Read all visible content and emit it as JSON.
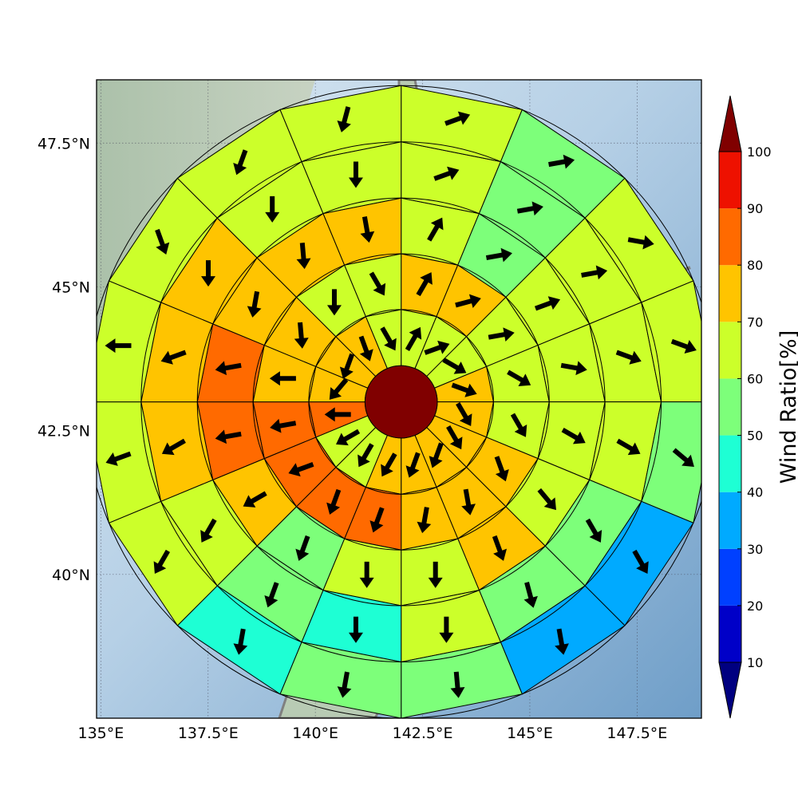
{
  "map": {
    "lon_ticks": [
      "135°E",
      "137.5°E",
      "140°E",
      "142.5°E",
      "145°E",
      "147.5°E"
    ],
    "lat_ticks": [
      "40°N",
      "42.5°N",
      "45°N",
      "47.5°N"
    ],
    "lon_range": [
      134.9,
      149.0
    ],
    "lat_range": [
      37.5,
      48.6
    ],
    "grid": true,
    "basemap": "shaded relief",
    "coastline_color": "#808080"
  },
  "rose": {
    "center": {
      "lon": 142.0,
      "lat": 43.0
    },
    "ring_radii_deg": [
      0.72,
      1.84,
      2.95,
      4.06,
      5.18,
      6.3
    ],
    "center_color": "#800000",
    "sectors": 16,
    "ring_ratios": [
      [
        60,
        60,
        60,
        70,
        70,
        70,
        70,
        70,
        70,
        60,
        60,
        80,
        70,
        70,
        70,
        60
      ],
      [
        70,
        70,
        60,
        60,
        60,
        70,
        70,
        70,
        80,
        80,
        80,
        80,
        70,
        70,
        60,
        60
      ],
      [
        60,
        50,
        60,
        60,
        60,
        60,
        70,
        60,
        60,
        50,
        70,
        80,
        80,
        70,
        70,
        70
      ],
      [
        60,
        50,
        60,
        60,
        60,
        50,
        50,
        60,
        40,
        50,
        60,
        70,
        70,
        70,
        60,
        60
      ],
      [
        60,
        50,
        60,
        60,
        50,
        30,
        30,
        50,
        50,
        40,
        60,
        60,
        60,
        60,
        60,
        60
      ]
    ],
    "ring_directions_deg": [
      [
        30,
        70,
        120,
        110,
        150,
        150,
        200,
        200,
        210,
        210,
        240,
        270,
        220,
        200,
        160,
        150
      ],
      [
        30,
        75,
        80,
        120,
        150,
        160,
        170,
        190,
        200,
        200,
        250,
        260,
        270,
        175,
        180,
        150
      ],
      [
        30,
        80,
        70,
        100,
        120,
        140,
        160,
        180,
        180,
        200,
        240,
        260,
        260,
        190,
        175,
        170
      ],
      [
        70,
        80,
        80,
        110,
        120,
        150,
        165,
        180,
        180,
        200,
        210,
        240,
        250,
        180,
        180,
        180
      ],
      [
        70,
        80,
        100,
        110,
        130,
        150,
        170,
        175,
        190,
        190,
        210,
        250,
        270,
        160,
        200,
        195
      ]
    ]
  },
  "colorbar": {
    "title": "Wind Ratio[%]",
    "ticks": [
      "10",
      "20",
      "30",
      "40",
      "50",
      "60",
      "70",
      "80",
      "90",
      "100"
    ],
    "levels": [
      10,
      20,
      30,
      40,
      50,
      60,
      70,
      80,
      90,
      100
    ],
    "colors": [
      "#0000c8",
      "#0040ff",
      "#00aaff",
      "#1effd4",
      "#7dff7a",
      "#ccff2a",
      "#ffc400",
      "#ff6a00",
      "#ee1100",
      "#800000"
    ],
    "under_color": "#000080",
    "over_color": "#800000"
  }
}
